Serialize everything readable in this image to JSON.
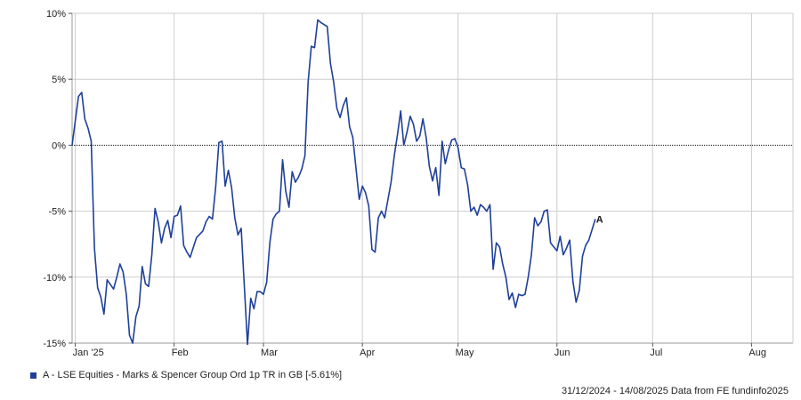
{
  "chart_data": {
    "type": "line",
    "title": "",
    "xlabel": "",
    "ylabel": "",
    "ylim": [
      -15,
      10
    ],
    "y_ticks": [
      10,
      5,
      0,
      -5,
      -10,
      -15
    ],
    "y_tick_labels": [
      "10%",
      "5%",
      "0%",
      "-5%",
      "-10%",
      "-15%"
    ],
    "x_ticks": [
      "2025-01-01",
      "2025-02-01",
      "2025-03-01",
      "2025-04-01",
      "2025-05-01",
      "2025-06-01",
      "2025-07-01",
      "2025-08-01"
    ],
    "x_tick_labels": [
      "Jan '25",
      "Feb",
      "Mar",
      "Apr",
      "May",
      "Jun",
      "Jul",
      "Aug"
    ],
    "xlim": [
      "2024-12-31",
      "2025-08-14"
    ],
    "grid": true,
    "zero_line": true,
    "series": [
      {
        "name": "A - LSE Equities - Marks & Spencer Group Ord 1p TR in GB [-5.61%]",
        "marker_label": "A",
        "color": "#1f3f99",
        "points": [
          [
            "2024-12-31",
            0.0
          ],
          [
            "2025-01-02",
            3.7
          ],
          [
            "2025-01-03",
            4.0
          ],
          [
            "2025-01-04",
            2.0
          ],
          [
            "2025-01-05",
            1.3
          ],
          [
            "2025-01-06",
            0.3
          ],
          [
            "2025-01-07",
            -7.8
          ],
          [
            "2025-01-08",
            -10.8
          ],
          [
            "2025-01-09",
            -11.5
          ],
          [
            "2025-01-10",
            -12.8
          ],
          [
            "2025-01-11",
            -10.2
          ],
          [
            "2025-01-13",
            -10.9
          ],
          [
            "2025-01-14",
            -10.0
          ],
          [
            "2025-01-15",
            -9.0
          ],
          [
            "2025-01-16",
            -9.6
          ],
          [
            "2025-01-17",
            -11.3
          ],
          [
            "2025-01-18",
            -14.4
          ],
          [
            "2025-01-19",
            -15.0
          ],
          [
            "2025-01-20",
            -13.0
          ],
          [
            "2025-01-21",
            -12.2
          ],
          [
            "2025-01-22",
            -9.2
          ],
          [
            "2025-01-23",
            -10.5
          ],
          [
            "2025-01-24",
            -10.7
          ],
          [
            "2025-01-25",
            -8.3
          ],
          [
            "2025-01-26",
            -4.8
          ],
          [
            "2025-01-27",
            -5.8
          ],
          [
            "2025-01-28",
            -7.4
          ],
          [
            "2025-01-29",
            -6.3
          ],
          [
            "2025-01-30",
            -5.7
          ],
          [
            "2025-01-31",
            -7.0
          ],
          [
            "2025-02-01",
            -5.4
          ],
          [
            "2025-02-02",
            -5.3
          ],
          [
            "2025-02-03",
            -4.6
          ],
          [
            "2025-02-04",
            -7.6
          ],
          [
            "2025-02-05",
            -8.1
          ],
          [
            "2025-02-06",
            -8.5
          ],
          [
            "2025-02-08",
            -7.0
          ],
          [
            "2025-02-10",
            -6.5
          ],
          [
            "2025-02-11",
            -5.8
          ],
          [
            "2025-02-12",
            -5.4
          ],
          [
            "2025-02-13",
            -5.6
          ],
          [
            "2025-02-14",
            -3.2
          ],
          [
            "2025-02-15",
            0.2
          ],
          [
            "2025-02-16",
            0.3
          ],
          [
            "2025-02-17",
            -3.1
          ],
          [
            "2025-02-18",
            -1.9
          ],
          [
            "2025-02-19",
            -3.2
          ],
          [
            "2025-02-20",
            -5.5
          ],
          [
            "2025-02-21",
            -6.8
          ],
          [
            "2025-02-22",
            -6.3
          ],
          [
            "2025-02-24",
            -15.1
          ],
          [
            "2025-02-25",
            -11.6
          ],
          [
            "2025-02-26",
            -12.4
          ],
          [
            "2025-02-27",
            -11.1
          ],
          [
            "2025-02-28",
            -11.1
          ],
          [
            "2025-03-01",
            -11.3
          ],
          [
            "2025-03-02",
            -10.4
          ],
          [
            "2025-03-03",
            -7.4
          ],
          [
            "2025-03-04",
            -5.6
          ],
          [
            "2025-03-05",
            -5.2
          ],
          [
            "2025-03-06",
            -5.0
          ],
          [
            "2025-03-07",
            -1.1
          ],
          [
            "2025-03-08",
            -3.5
          ],
          [
            "2025-03-09",
            -4.7
          ],
          [
            "2025-03-10",
            -2.0
          ],
          [
            "2025-03-11",
            -2.8
          ],
          [
            "2025-03-12",
            -2.4
          ],
          [
            "2025-03-13",
            -1.8
          ],
          [
            "2025-03-14",
            -0.8
          ],
          [
            "2025-03-15",
            4.8
          ],
          [
            "2025-03-16",
            7.5
          ],
          [
            "2025-03-17",
            7.4
          ],
          [
            "2025-03-18",
            9.5
          ],
          [
            "2025-03-19",
            9.3
          ],
          [
            "2025-03-21",
            9.0
          ],
          [
            "2025-03-22",
            6.2
          ],
          [
            "2025-03-23",
            4.8
          ],
          [
            "2025-03-24",
            2.8
          ],
          [
            "2025-03-25",
            2.1
          ],
          [
            "2025-03-26",
            3.0
          ],
          [
            "2025-03-27",
            3.6
          ],
          [
            "2025-03-28",
            1.4
          ],
          [
            "2025-03-29",
            0.6
          ],
          [
            "2025-03-31",
            -4.1
          ],
          [
            "2025-04-01",
            -3.1
          ],
          [
            "2025-04-02",
            -3.6
          ],
          [
            "2025-04-03",
            -4.6
          ],
          [
            "2025-04-04",
            -7.9
          ],
          [
            "2025-04-05",
            -8.1
          ],
          [
            "2025-04-06",
            -5.5
          ],
          [
            "2025-04-07",
            -5.0
          ],
          [
            "2025-04-08",
            -5.5
          ],
          [
            "2025-04-10",
            -2.8
          ],
          [
            "2025-04-11",
            -0.8
          ],
          [
            "2025-04-12",
            0.8
          ],
          [
            "2025-04-13",
            2.6
          ],
          [
            "2025-04-14",
            0.0
          ],
          [
            "2025-04-15",
            1.0
          ],
          [
            "2025-04-16",
            2.2
          ],
          [
            "2025-04-17",
            1.6
          ],
          [
            "2025-04-18",
            0.3
          ],
          [
            "2025-04-19",
            0.7
          ],
          [
            "2025-04-20",
            2.0
          ],
          [
            "2025-04-21",
            0.6
          ],
          [
            "2025-04-22",
            -1.6
          ],
          [
            "2025-04-23",
            -2.7
          ],
          [
            "2025-04-24",
            -1.7
          ],
          [
            "2025-04-25",
            -3.8
          ],
          [
            "2025-04-26",
            0.3
          ],
          [
            "2025-04-27",
            -1.4
          ],
          [
            "2025-04-28",
            -0.4
          ],
          [
            "2025-04-29",
            0.4
          ],
          [
            "2025-04-30",
            0.5
          ],
          [
            "2025-05-01",
            -0.2
          ],
          [
            "2025-05-02",
            -1.7
          ],
          [
            "2025-05-03",
            -1.8
          ],
          [
            "2025-05-04",
            -3.0
          ],
          [
            "2025-05-05",
            -5.0
          ],
          [
            "2025-05-06",
            -4.7
          ],
          [
            "2025-05-07",
            -5.3
          ],
          [
            "2025-05-08",
            -4.5
          ],
          [
            "2025-05-09",
            -4.7
          ],
          [
            "2025-05-10",
            -5.0
          ],
          [
            "2025-05-11",
            -4.5
          ],
          [
            "2025-05-12",
            -9.4
          ],
          [
            "2025-05-13",
            -7.4
          ],
          [
            "2025-05-14",
            -7.7
          ],
          [
            "2025-05-15",
            -9.0
          ],
          [
            "2025-05-16",
            -10.0
          ],
          [
            "2025-05-17",
            -11.7
          ],
          [
            "2025-05-18",
            -11.2
          ],
          [
            "2025-05-19",
            -12.3
          ],
          [
            "2025-05-20",
            -11.3
          ],
          [
            "2025-05-21",
            -11.4
          ],
          [
            "2025-05-22",
            -11.3
          ],
          [
            "2025-05-23",
            -10.0
          ],
          [
            "2025-05-24",
            -8.3
          ],
          [
            "2025-05-25",
            -5.5
          ],
          [
            "2025-05-26",
            -6.1
          ],
          [
            "2025-05-27",
            -5.8
          ],
          [
            "2025-05-28",
            -5.0
          ],
          [
            "2025-05-29",
            -4.9
          ],
          [
            "2025-05-30",
            -7.4
          ],
          [
            "2025-05-31",
            -7.7
          ],
          [
            "2025-06-01",
            -8.0
          ],
          [
            "2025-06-02",
            -6.9
          ],
          [
            "2025-06-03",
            -8.3
          ],
          [
            "2025-06-04",
            -7.8
          ],
          [
            "2025-06-05",
            -7.2
          ],
          [
            "2025-06-06",
            -10.3
          ],
          [
            "2025-06-07",
            -11.9
          ],
          [
            "2025-06-08",
            -11.0
          ],
          [
            "2025-06-09",
            -8.4
          ],
          [
            "2025-06-10",
            -7.6
          ],
          [
            "2025-06-11",
            -7.2
          ],
          [
            "2025-06-13",
            -5.61
          ]
        ]
      }
    ],
    "legend_position": "bottom-left"
  },
  "footer": {
    "source_text": "31/12/2024 - 14/08/2025 Data from FE fundinfo2025"
  }
}
